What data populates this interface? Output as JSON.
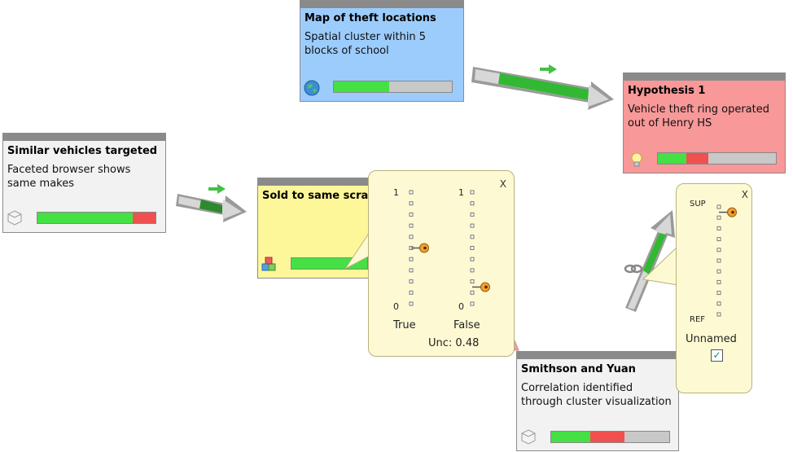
{
  "colors": {
    "green": "#44e044",
    "red": "#f05050",
    "gray": "#c8c8c8",
    "node_gray": "#f2f2f2",
    "node_blue": "#9cccfc",
    "node_pink": "#f89898",
    "node_yellow": "#fdf79a",
    "link_green": "#33b833"
  },
  "nodes": {
    "map": {
      "title": "Map of theft locations",
      "desc": "Spatial cluster within 5 blocks of school",
      "icon": "globe-icon",
      "bar": {
        "green": 0.47,
        "red": 0.0
      }
    },
    "hypothesis": {
      "title": "Hypothesis 1",
      "desc": "Vehicle theft ring operated out of Henry HS",
      "icon": "lightbulb-icon",
      "bar": {
        "green": 0.24,
        "red": 0.19
      }
    },
    "similar": {
      "title": "Similar vehicles targeted",
      "desc": "Faceted browser shows same makes",
      "icon": "cube-icon",
      "bar": {
        "green": 0.81,
        "red": 0.19
      }
    },
    "sold": {
      "title": "Sold to same scrapyard",
      "desc": "",
      "icon": "colored-cubes-icon",
      "bar": {
        "green": 0.64,
        "red": 0.14
      }
    },
    "smithson": {
      "title": "Smithson and Yuan",
      "desc": "Correlation identified through cluster visualization",
      "icon": "cube-icon",
      "bar": {
        "green": 0.33,
        "red": 0.29
      }
    }
  },
  "popup_belief": {
    "close": "X",
    "true_label": "True",
    "false_label": "False",
    "top_tick": "1",
    "bottom_tick": "0",
    "true_value": 0.5,
    "false_value": 0.15,
    "uncertainty": "Unc: 0.48"
  },
  "popup_link": {
    "close": "X",
    "sup_label": "SUP",
    "ref_label": "REF",
    "name": "Unnamed",
    "checkbox": "✓",
    "checked": true,
    "value": 0.95
  }
}
